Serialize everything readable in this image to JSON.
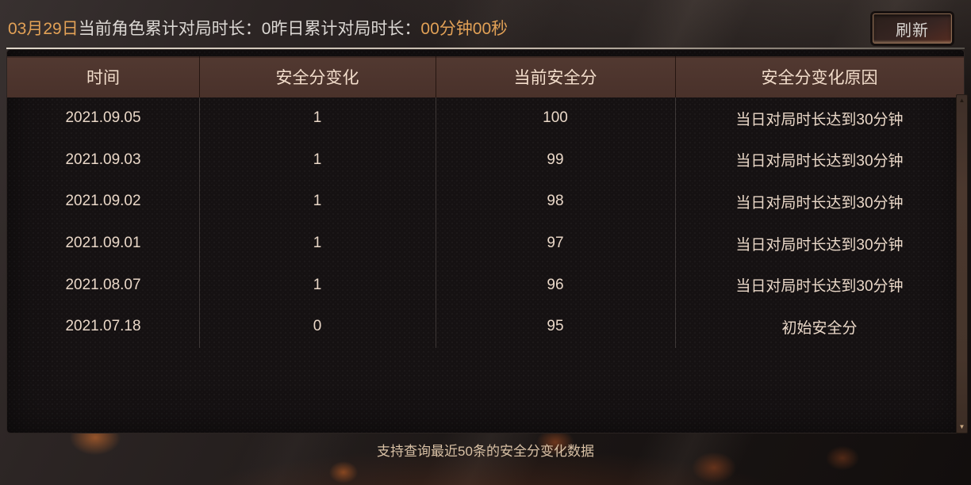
{
  "topbar": {
    "date": "03月29日",
    "cumulative_label": "当前角色累计对局时长：",
    "cumulative_value": "0",
    "yesterday_label": "昨日累计对局时长：",
    "yesterday_value": "00分钟00秒",
    "refresh_label": "刷新"
  },
  "table": {
    "headers": [
      "时间",
      "安全分变化",
      "当前安全分",
      "安全分变化原因"
    ],
    "rows": [
      [
        "2021.09.05",
        "1",
        "100",
        "当日对局时长达到30分钟"
      ],
      [
        "2021.09.03",
        "1",
        "99",
        "当日对局时长达到30分钟"
      ],
      [
        "2021.09.02",
        "1",
        "98",
        "当日对局时长达到30分钟"
      ],
      [
        "2021.09.01",
        "1",
        "97",
        "当日对局时长达到30分钟"
      ],
      [
        "2021.08.07",
        "1",
        "96",
        "当日对局时长达到30分钟"
      ],
      [
        "2021.07.18",
        "0",
        "95",
        "初始安全分"
      ]
    ]
  },
  "footer": {
    "note": "支持查询最近50条的安全分变化数据"
  },
  "icons": {
    "scroll_up": "▲",
    "scroll_down": "▼"
  },
  "colors": {
    "accent_orange": "#e2a156",
    "label_white": "#dcd8d4",
    "header_bg": "#4b332a",
    "header_text": "#f2ddcb",
    "table_text": "#ead8c8",
    "footer_text": "#d9c1a5"
  }
}
